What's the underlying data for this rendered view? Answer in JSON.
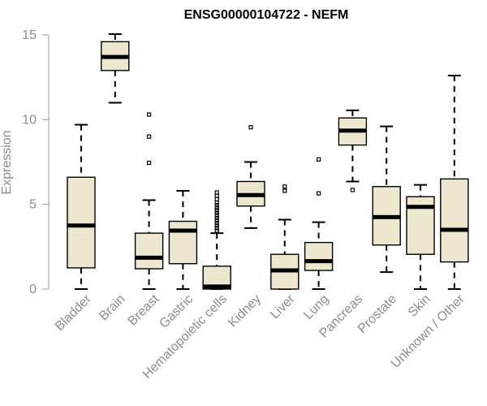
{
  "chart_data": {
    "type": "boxplot",
    "title": "ENSG00000104722 - NEFM",
    "xlabel": "",
    "ylabel": "Expression",
    "ylim": [
      0,
      15
    ],
    "yticks": [
      0,
      5,
      10,
      15
    ],
    "box_color": "#ede7d0",
    "categories": [
      "Bladder",
      "Brain",
      "Breast",
      "Gastric",
      "Hematopoietic cells",
      "Kidney",
      "Liver",
      "Lung",
      "Pancreas",
      "Prostate",
      "Skin",
      "Unknown / Other"
    ],
    "boxes": [
      {
        "label": "Bladder",
        "min": 0.0,
        "q1": 1.25,
        "median": 3.75,
        "q3": 6.6,
        "max": 9.7,
        "outliers": []
      },
      {
        "label": "Brain",
        "min": 11.0,
        "q1": 12.9,
        "median": 13.7,
        "q3": 14.6,
        "max": 15.05,
        "outliers": []
      },
      {
        "label": "Breast",
        "min": 0.0,
        "q1": 1.2,
        "median": 1.85,
        "q3": 3.3,
        "max": 5.25,
        "outliers": [
          7.45,
          9.0,
          10.3
        ]
      },
      {
        "label": "Gastric",
        "min": 0.0,
        "q1": 1.5,
        "median": 3.45,
        "q3": 4.0,
        "max": 5.8,
        "outliers": []
      },
      {
        "label": "Hematopoietic cells",
        "min": 0.0,
        "q1": 0.0,
        "median": 0.15,
        "q3": 1.35,
        "max": 3.3,
        "outliers": [
          3.45,
          3.6,
          3.75,
          3.9,
          4.05,
          4.2,
          4.35,
          4.5,
          4.65,
          4.8,
          4.95,
          5.1,
          5.3,
          5.5,
          5.7
        ]
      },
      {
        "label": "Kidney",
        "min": 3.6,
        "q1": 4.9,
        "median": 5.55,
        "q3": 6.35,
        "max": 7.5,
        "outliers": [
          9.55
        ]
      },
      {
        "label": "Liver",
        "min": 0.0,
        "q1": 0.0,
        "median": 1.1,
        "q3": 2.05,
        "max": 4.1,
        "outliers": [
          5.8,
          6.05
        ]
      },
      {
        "label": "Lung",
        "min": 0.0,
        "q1": 1.1,
        "median": 1.65,
        "q3": 2.75,
        "max": 3.95,
        "outliers": [
          5.65,
          7.65
        ]
      },
      {
        "label": "Pancreas",
        "min": 6.35,
        "q1": 8.5,
        "median": 9.35,
        "q3": 10.1,
        "max": 10.55,
        "outliers": [
          5.85
        ]
      },
      {
        "label": "Prostate",
        "min": 1.0,
        "q1": 2.6,
        "median": 4.25,
        "q3": 6.05,
        "max": 9.6,
        "outliers": []
      },
      {
        "label": "Skin",
        "min": 0.0,
        "q1": 2.05,
        "median": 4.85,
        "q3": 5.45,
        "max": 6.15,
        "outliers": []
      },
      {
        "label": "Unknown / Other",
        "min": 0.0,
        "q1": 1.6,
        "median": 3.5,
        "q3": 6.5,
        "max": 12.6,
        "outliers": []
      }
    ]
  }
}
